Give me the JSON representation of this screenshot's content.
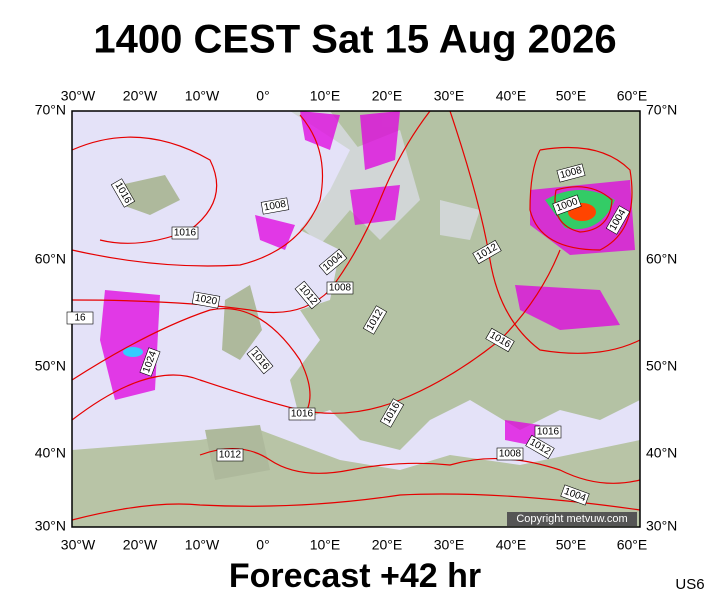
{
  "header": {
    "title": "1400 CEST Sat 15 Aug 2026"
  },
  "map": {
    "lon_labels": [
      "30°W",
      "20°W",
      "10°W",
      "0°",
      "10°E",
      "20°E",
      "30°E",
      "40°E",
      "50°E",
      "60°E"
    ],
    "lat_labels": [
      "70°N",
      "60°N",
      "50°N",
      "40°N",
      "30°N"
    ],
    "isobar_labels": [
      "1016",
      "1008",
      "1016",
      "1004",
      "1008",
      "1012",
      "1020",
      "16",
      "1012",
      "1016",
      "1024",
      "1016",
      "1012",
      "1008",
      "1000",
      "1004",
      "1016",
      "1016",
      "1012",
      "1016",
      "1012",
      "1008",
      "1004"
    ],
    "copyright": "Copyright metvuw.com"
  },
  "footer": {
    "forecast": "Forecast +42 hr",
    "code": "US6"
  }
}
